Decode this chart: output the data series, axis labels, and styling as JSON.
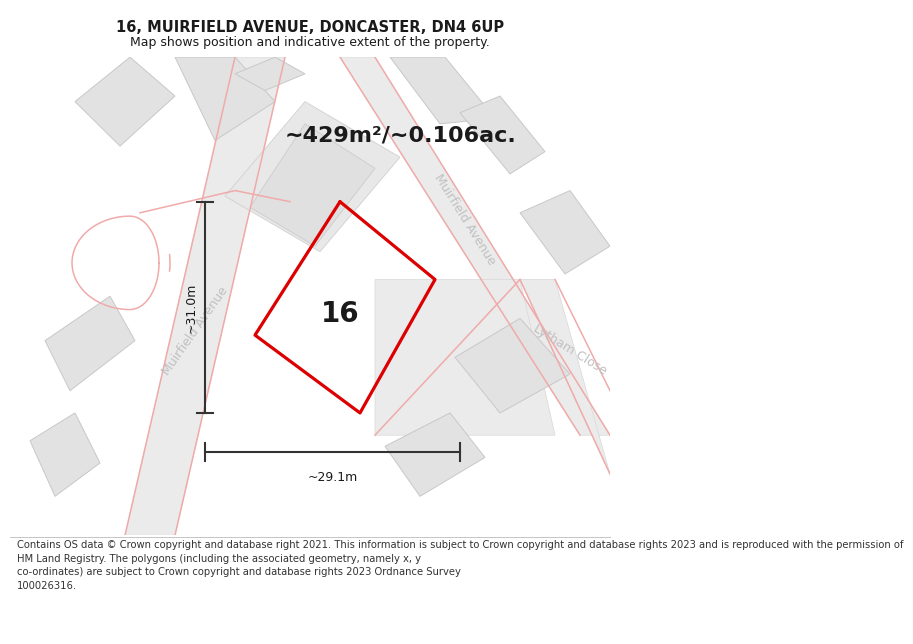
{
  "title_line1": "16, MUIRFIELD AVENUE, DONCASTER, DN4 6UP",
  "title_line2": "Map shows position and indicative extent of the property.",
  "area_label": "~429m²/~0.106ac.",
  "property_number": "16",
  "dim_vertical": "~31.0m",
  "dim_horizontal": "~29.1m",
  "street_left": "Muirfield Avenue",
  "street_right": "Muirfield Avenue",
  "street_lytham": "Lytham Close",
  "footer_text": "Contains OS data © Crown copyright and database right 2021. This information is subject to Crown copyright and database rights 2023 and is reproduced with the permission of\nHM Land Registry. The polygons (including the associated geometry, namely x, y\nco-ordinates) are subject to Crown copyright and database rights 2023 Ordnance Survey\n100026316.",
  "bg_white": "#ffffff",
  "road_fill": "#ebebeb",
  "road_edge": "#d8d8d8",
  "building_fill": "#e2e2e2",
  "building_edge": "#c8c8c8",
  "plot_red": "#dd0000",
  "plot_pink": "#f0aaaa",
  "dim_color": "#333333",
  "text_dark": "#1a1a1a",
  "text_street": "#c0c0c0",
  "title_fs": 10.5,
  "subtitle_fs": 9,
  "area_fs": 16,
  "num_fs": 20,
  "footer_fs": 7.2,
  "dim_fs": 9,
  "street_fs": 9
}
